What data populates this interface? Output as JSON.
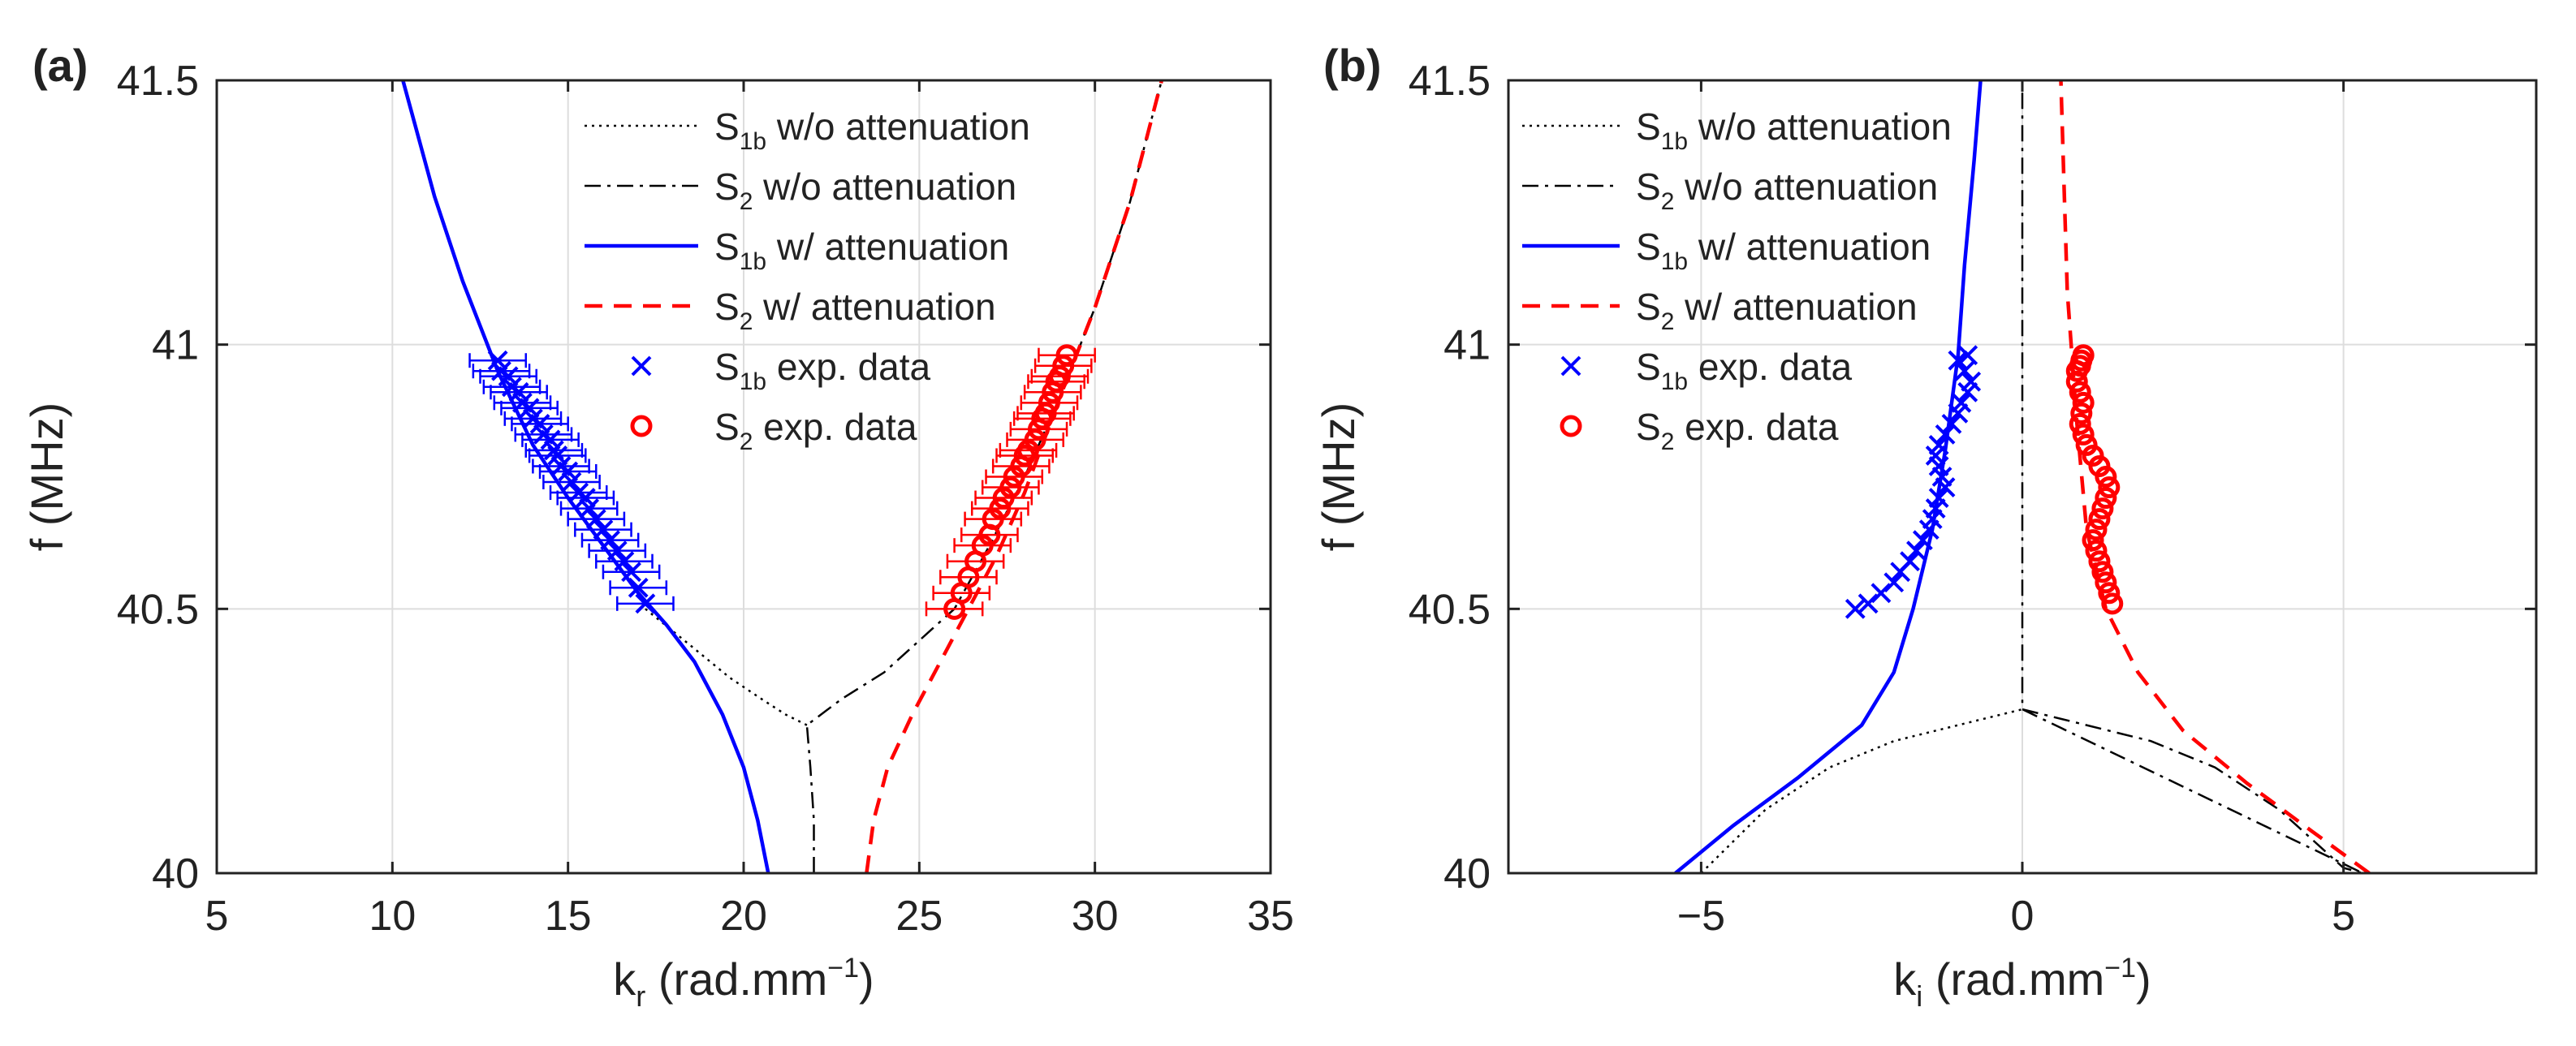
{
  "chart_data": [
    {
      "type": "line",
      "panel_label": "(a)",
      "xlabel_main": "k",
      "xlabel_sub": "r",
      "xlabel_units": "(rad.mm",
      "xlabel_exp": "−1",
      "xlabel_close": ")",
      "ylabel": "f (MHz)",
      "xlim": [
        5,
        35
      ],
      "ylim": [
        40,
        41.5
      ],
      "xticks": [
        5,
        10,
        15,
        20,
        25,
        30,
        35
      ],
      "xtick_labels": [
        "5",
        "10",
        "15",
        "20",
        "25",
        "30",
        "35"
      ],
      "yticks": [
        40,
        40.5,
        41,
        41.5
      ],
      "ytick_labels": [
        "40",
        "40.5",
        "41",
        "41.5"
      ],
      "grid": true,
      "legend_position": "top-right",
      "series": [
        {
          "name": "S1b w/o attenuation",
          "legend_main": "S",
          "legend_sub": "1b",
          "legend_rest": " w/o attenuation",
          "style": "dotted",
          "color": "#000000",
          "x": [
            17.2,
            18.5,
            19.6,
            20.5,
            21.2,
            21.8
          ],
          "y": [
            40.5,
            40.43,
            40.37,
            40.33,
            40.3,
            40.28
          ]
        },
        {
          "name": "S2 w/o attenuation",
          "legend_main": "S",
          "legend_sub": "2",
          "legend_rest": " w/o attenuation",
          "style": "dashdot",
          "color": "#000000",
          "x": [
            22.0,
            22.0,
            21.9,
            21.8,
            22.8,
            24.0,
            25.0,
            26.0,
            27.0,
            28.0,
            29.0,
            30.0,
            31.0,
            31.9
          ],
          "y": [
            40.0,
            40.1,
            40.2,
            40.28,
            40.33,
            40.38,
            40.44,
            40.5,
            40.62,
            40.75,
            40.9,
            41.07,
            41.27,
            41.5
          ]
        },
        {
          "name": "S1b w/ attenuation",
          "legend_main": "S",
          "legend_sub": "1b",
          "legend_rest": " w/ attenuation",
          "style": "solid",
          "color": "#0000ff",
          "x": [
            20.7,
            20.4,
            20.0,
            19.4,
            18.6,
            17.8,
            17.0,
            16.0,
            15.0,
            14.0,
            13.0,
            12.0,
            11.2,
            10.3
          ],
          "y": [
            40.0,
            40.1,
            40.2,
            40.3,
            40.4,
            40.47,
            40.53,
            40.62,
            40.71,
            40.81,
            40.95,
            41.12,
            41.28,
            41.5
          ]
        },
        {
          "name": "S2 w/ attenuation",
          "legend_main": "S",
          "legend_sub": "2",
          "legend_rest": " w/ attenuation",
          "style": "dashed",
          "color": "#ff0000",
          "x": [
            23.5,
            23.7,
            24.1,
            24.8,
            25.6,
            26.4,
            27.2,
            28.0,
            29.0,
            30.0,
            31.0,
            31.9
          ],
          "y": [
            40.0,
            40.1,
            40.2,
            40.3,
            40.4,
            40.5,
            40.6,
            40.72,
            40.9,
            41.07,
            41.27,
            41.5
          ]
        },
        {
          "name": "S1b exp. data",
          "legend_main": "S",
          "legend_sub": "1b",
          "legend_rest": " exp. data",
          "style": "markers-x",
          "color": "#0000ff",
          "xerr": 0.8,
          "x": [
            17.2,
            17.0,
            16.8,
            16.6,
            16.4,
            16.2,
            16.0,
            15.8,
            15.6,
            15.5,
            15.3,
            15.1,
            15.0,
            14.8,
            14.7,
            14.6,
            14.5,
            14.3,
            14.2,
            14.0,
            13.9,
            13.7,
            13.6,
            13.4,
            13.3,
            13.1,
            13.0
          ],
          "y": [
            40.51,
            40.54,
            40.57,
            40.59,
            40.61,
            40.63,
            40.65,
            40.67,
            40.69,
            40.71,
            40.72,
            40.74,
            40.76,
            40.77,
            40.79,
            40.8,
            40.82,
            40.83,
            40.85,
            40.86,
            40.88,
            40.89,
            40.91,
            40.92,
            40.94,
            40.95,
            40.97
          ]
        },
        {
          "name": "S2 exp. data",
          "legend_main": "S",
          "legend_sub": "2",
          "legend_rest": " exp. data",
          "style": "markers-o",
          "color": "#ff0000",
          "xerr": 0.8,
          "x": [
            26.0,
            26.2,
            26.4,
            26.6,
            26.8,
            27.0,
            27.1,
            27.3,
            27.4,
            27.6,
            27.7,
            27.9,
            28.0,
            28.1,
            28.3,
            28.4,
            28.5,
            28.6,
            28.7,
            28.8,
            28.9,
            29.0,
            29.1,
            29.2
          ],
          "y": [
            40.5,
            40.53,
            40.56,
            40.59,
            40.62,
            40.64,
            40.67,
            40.69,
            40.71,
            40.73,
            40.75,
            40.77,
            40.79,
            40.8,
            40.82,
            40.84,
            40.86,
            40.87,
            40.89,
            40.91,
            40.93,
            40.94,
            40.96,
            40.98
          ]
        }
      ]
    },
    {
      "type": "line",
      "panel_label": "(b)",
      "xlabel_main": "k",
      "xlabel_sub": "i",
      "xlabel_units": "(rad.mm",
      "xlabel_exp": "−1",
      "xlabel_close": ")",
      "ylabel": "f (MHz)",
      "xlim": [
        -8,
        8
      ],
      "ylim": [
        40,
        41.5
      ],
      "xticks": [
        -5,
        0,
        5
      ],
      "xtick_labels": [
        "−5",
        "0",
        "5"
      ],
      "yticks": [
        40,
        40.5,
        41,
        41.5
      ],
      "ytick_labels": [
        "40",
        "40.5",
        "41",
        "41.5"
      ],
      "grid": true,
      "legend_position": "top-left",
      "series": [
        {
          "name": "S1b w/o attenuation",
          "legend_main": "S",
          "legend_sub": "1b",
          "legend_rest": " w/o attenuation",
          "style": "dotted",
          "color": "#000000",
          "x": [
            -5.0,
            -4.0,
            -3.0,
            -2.0,
            -1.0,
            0.0
          ],
          "y": [
            40.0,
            40.12,
            40.2,
            40.25,
            40.28,
            40.31
          ]
        },
        {
          "name": "S2 w/o attenuation",
          "legend_main": "S",
          "legend_sub": "2",
          "legend_rest": " w/o attenuation",
          "style": "dashdot",
          "color": "#000000",
          "x": [
            0.0,
            1.0,
            2.0,
            3.0,
            4.0,
            5.0,
            5.3,
            0.0,
            0.0,
            0.0
          ],
          "y": [
            40.31,
            40.28,
            40.25,
            40.2,
            40.12,
            40.01,
            40.0,
            40.31,
            40.9,
            41.5
          ]
        },
        {
          "name": "S1b w/ attenuation",
          "legend_main": "S",
          "legend_sub": "1b",
          "legend_rest": " w/ attenuation",
          "style": "solid",
          "color": "#0000ff",
          "x": [
            -5.4,
            -4.5,
            -3.5,
            -2.5,
            -2.0,
            -1.7,
            -1.4,
            -1.2,
            -1.0,
            -0.9,
            -0.75,
            -0.65
          ],
          "y": [
            40.0,
            40.09,
            40.18,
            40.28,
            40.38,
            40.5,
            40.65,
            40.8,
            40.98,
            41.15,
            41.35,
            41.5
          ]
        },
        {
          "name": "S2 w/ attenuation",
          "legend_main": "S",
          "legend_sub": "2",
          "legend_rest": " w/ attenuation",
          "style": "dashed",
          "color": "#ff0000",
          "x": [
            5.4,
            4.5,
            3.5,
            2.5,
            1.8,
            1.3,
            1.0,
            0.85,
            0.7,
            0.65,
            0.6
          ],
          "y": [
            40.0,
            40.08,
            40.17,
            40.27,
            40.38,
            40.5,
            40.65,
            40.85,
            41.1,
            41.3,
            41.5
          ]
        },
        {
          "name": "S1b exp. data",
          "legend_main": "S",
          "legend_sub": "1b",
          "legend_rest": " exp. data",
          "style": "markers-x",
          "color": "#0000ff",
          "x": [
            -2.6,
            -2.4,
            -2.2,
            -2.0,
            -1.9,
            -1.75,
            -1.65,
            -1.55,
            -1.45,
            -1.4,
            -1.35,
            -1.3,
            -1.2,
            -1.25,
            -1.3,
            -1.35,
            -1.3,
            -1.2,
            -1.1,
            -1.0,
            -0.95,
            -0.85,
            -0.8,
            -0.9,
            -1.0,
            -0.85
          ],
          "y": [
            40.5,
            40.51,
            40.53,
            40.55,
            40.57,
            40.59,
            40.61,
            40.63,
            40.65,
            40.67,
            40.69,
            40.71,
            40.73,
            40.75,
            40.77,
            40.79,
            40.81,
            40.83,
            40.85,
            40.87,
            40.89,
            40.91,
            40.93,
            40.95,
            40.97,
            40.98
          ]
        },
        {
          "name": "S2 exp. data",
          "legend_main": "S",
          "legend_sub": "2",
          "legend_rest": " exp. data",
          "style": "markers-o",
          "color": "#ff0000",
          "x": [
            1.4,
            1.35,
            1.3,
            1.25,
            1.2,
            1.15,
            1.1,
            1.15,
            1.2,
            1.25,
            1.3,
            1.35,
            1.3,
            1.2,
            1.1,
            1.0,
            0.95,
            0.9,
            0.92,
            0.95,
            0.9,
            0.85,
            0.85,
            0.9,
            0.92,
            0.95
          ],
          "y": [
            40.51,
            40.53,
            40.55,
            40.57,
            40.59,
            40.61,
            40.63,
            40.65,
            40.67,
            40.69,
            40.71,
            40.73,
            40.75,
            40.77,
            40.79,
            40.81,
            40.83,
            40.85,
            40.87,
            40.89,
            40.91,
            40.93,
            40.95,
            40.96,
            40.97,
            40.98
          ]
        }
      ]
    }
  ]
}
